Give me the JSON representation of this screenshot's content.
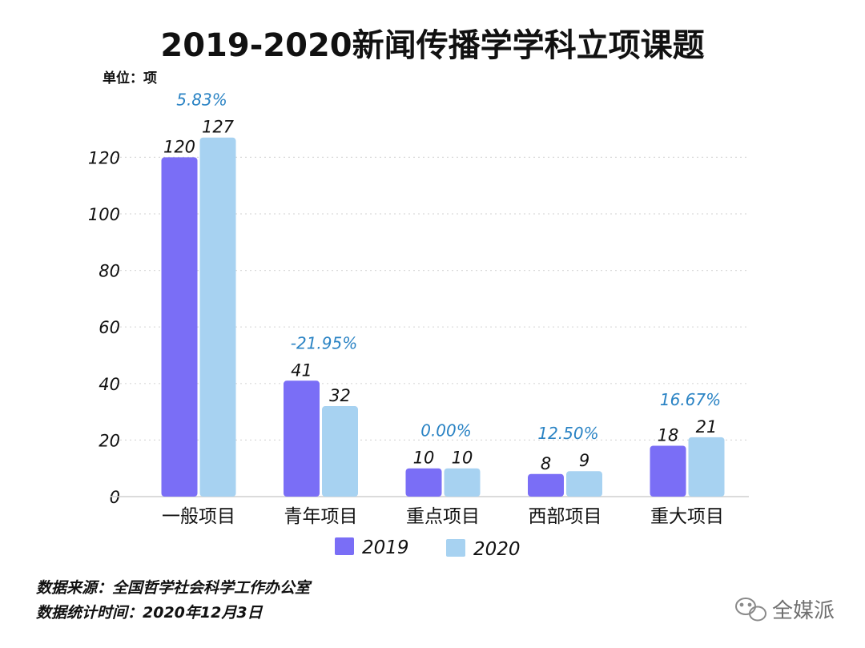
{
  "chart_data": {
    "type": "bar",
    "title": "2019-2020新闻传播学学科立项课题",
    "unit_label": "单位：项",
    "categories": [
      "一般项目",
      "青年项目",
      "重点项目",
      "西部项目",
      "重大项目"
    ],
    "series": [
      {
        "name": "2019",
        "values": [
          120,
          41,
          10,
          8,
          18
        ]
      },
      {
        "name": "2020",
        "values": [
          127,
          32,
          10,
          9,
          21
        ]
      }
    ],
    "change_labels": [
      "5.83%",
      "-21.95%",
      "0.00%",
      "12.50%",
      "16.67%"
    ],
    "yticks": [
      0,
      20,
      40,
      60,
      80,
      100,
      120
    ],
    "ylim": [
      0,
      135
    ],
    "grid": true,
    "legend_position": "bottom",
    "colors": {
      "2019": "#7a6ef6",
      "2020": "#a7d2f1",
      "change": "#2a83c4"
    }
  },
  "footer": {
    "source": "数据来源：全国哲学社会科学工作办公室",
    "date": "数据统计时间：2020年12月3日"
  },
  "watermark": {
    "text": "全媒派",
    "icon": "wechat-icon"
  }
}
